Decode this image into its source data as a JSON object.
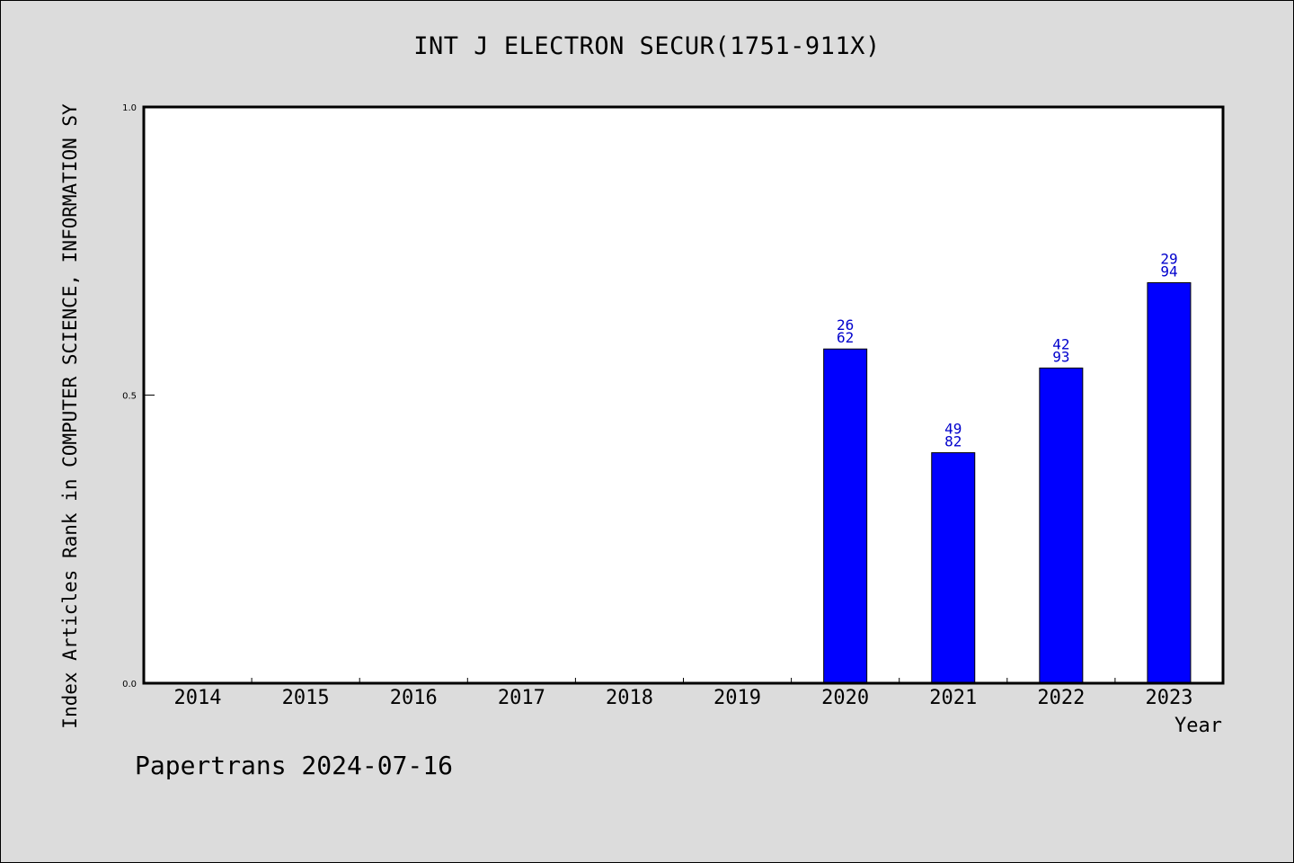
{
  "chart_data": {
    "type": "bar",
    "title": "INT J ELECTRON SECUR(1751-911X)",
    "xlabel": "Year",
    "ylabel": "Index Articles Rank in COMPUTER SCIENCE, INFORMATION SY",
    "categories": [
      "2014",
      "2015",
      "2016",
      "2017",
      "2018",
      "2019",
      "2020",
      "2021",
      "2022",
      "2023"
    ],
    "values": [
      null,
      null,
      null,
      null,
      null,
      null,
      0.58,
      0.4,
      0.547,
      0.695
    ],
    "bar_labels": [
      "",
      "",
      "",
      "",
      "",
      "",
      "26\n62",
      "49\n82",
      "42\n93",
      "29\n94"
    ],
    "ylim": [
      0,
      1.0
    ],
    "yticks": [
      "0.0",
      "0.5",
      "1.0"
    ],
    "ytick_values": [
      0,
      0.5,
      1.0
    ],
    "grid": false,
    "bar_color": "#0000ff",
    "label_color": "#0000cc"
  },
  "footer": "Papertrans 2024-07-16"
}
